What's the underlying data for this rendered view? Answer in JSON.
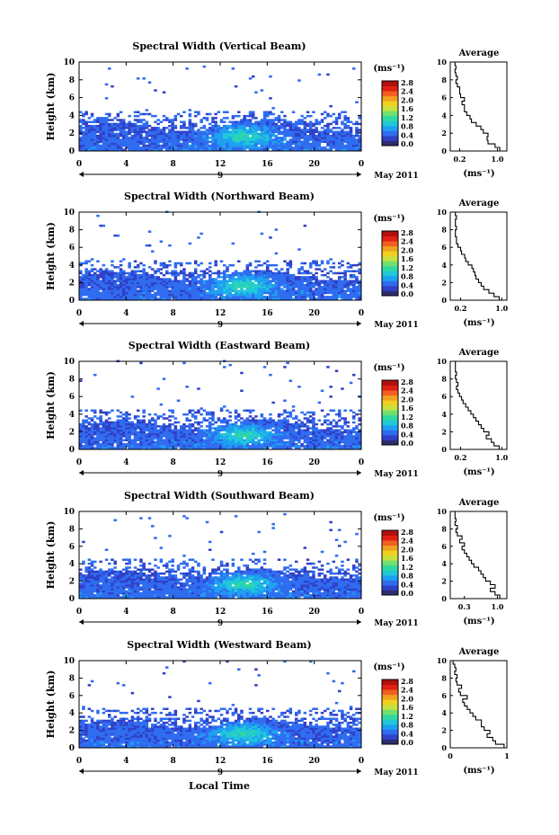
{
  "figure": {
    "bottom_xlabel": "Local Time"
  },
  "colorbar": {
    "unit_label": "(ms⁻¹)",
    "ticks": [
      "2.8",
      "2.4",
      "2.0",
      "1.6",
      "1.2",
      "0.8",
      "0.4",
      "0.0"
    ],
    "colors": [
      "#2d2d6e",
      "#3040c8",
      "#2f6cf0",
      "#1ea0f0",
      "#20c8d8",
      "#30d8a0",
      "#70e070",
      "#c8e040",
      "#f0d020",
      "#f0a020",
      "#f06020",
      "#e02010",
      "#b01010"
    ]
  },
  "chart_data": [
    {
      "type": "heatmap",
      "title": "Spectral Width (Vertical Beam)",
      "ylabel": "Height (km)",
      "ylim": [
        0,
        10
      ],
      "yticks": [
        "0",
        "2",
        "4",
        "6",
        "8",
        "10"
      ],
      "xlim": [
        0,
        24
      ],
      "xticks": [
        "0",
        "4",
        "8",
        "12",
        "16",
        "20",
        "0"
      ],
      "date_day": "9",
      "date_label": "May 2011",
      "profile": {
        "title": "Average",
        "xlabel": "(ms⁻¹)",
        "xlim": [
          0.0,
          1.2
        ],
        "xticks": [
          {
            "v": 0.2,
            "t": "0.2"
          },
          {
            "v": 1.0,
            "t": "1.0"
          }
        ],
        "height": [
          0.2,
          0.6,
          1.0,
          1.4,
          1.8,
          2.2,
          2.6,
          3.0,
          3.4,
          3.8,
          4.2,
          4.6,
          5.0,
          5.4,
          5.8,
          6.2,
          6.6,
          7.0,
          7.4,
          7.8,
          8.2,
          8.6,
          9.0,
          9.4,
          9.8
        ],
        "width": [
          1.05,
          0.95,
          0.8,
          0.78,
          0.8,
          0.7,
          0.65,
          0.55,
          0.45,
          0.42,
          0.35,
          0.3,
          0.3,
          0.25,
          0.3,
          0.22,
          0.2,
          0.2,
          0.15,
          0.12,
          0.15,
          0.12,
          0.1,
          0.12,
          0.1
        ]
      }
    },
    {
      "type": "heatmap",
      "title": "Spectral Width (Northward Beam)",
      "ylabel": "Height (km)",
      "ylim": [
        0,
        10
      ],
      "yticks": [
        "0",
        "2",
        "4",
        "6",
        "8",
        "10"
      ],
      "xlim": [
        0,
        24
      ],
      "xticks": [
        "0",
        "4",
        "8",
        "12",
        "16",
        "20",
        "0"
      ],
      "date_day": "9",
      "date_label": "May 2011",
      "profile": {
        "title": "Average",
        "xlabel": "(ms⁻¹)",
        "xlim": [
          0.0,
          1.1
        ],
        "xticks": [
          {
            "v": 0.2,
            "t": "0.2"
          },
          {
            "v": 1.0,
            "t": "1.0"
          }
        ],
        "height": [
          0.2,
          0.6,
          1.0,
          1.4,
          1.8,
          2.2,
          2.6,
          3.0,
          3.4,
          3.8,
          4.2,
          4.6,
          5.0,
          5.4,
          5.8,
          6.2,
          6.6,
          7.0,
          7.4,
          7.8,
          8.2,
          8.6,
          9.0,
          9.4,
          9.8
        ],
        "width": [
          0.95,
          0.85,
          0.75,
          0.65,
          0.6,
          0.55,
          0.5,
          0.48,
          0.45,
          0.42,
          0.35,
          0.3,
          0.28,
          0.22,
          0.2,
          0.15,
          0.12,
          0.12,
          0.1,
          0.1,
          0.12,
          0.1,
          0.1,
          0.12,
          0.1
        ]
      }
    },
    {
      "type": "heatmap",
      "title": "Spectral Width (Eastward Beam)",
      "ylabel": "Height (km)",
      "ylim": [
        0,
        10
      ],
      "yticks": [
        "0",
        "2",
        "4",
        "6",
        "8",
        "10"
      ],
      "xlim": [
        0,
        24
      ],
      "xticks": [
        "0",
        "4",
        "8",
        "12",
        "16",
        "20",
        "0"
      ],
      "date_day": "9",
      "date_label": "May 2011",
      "profile": {
        "title": "Average",
        "xlabel": "(ms⁻¹)",
        "xlim": [
          0.0,
          1.1
        ],
        "xticks": [
          {
            "v": 0.2,
            "t": "0.2"
          },
          {
            "v": 1.0,
            "t": "1.0"
          }
        ],
        "height": [
          0.2,
          0.6,
          1.0,
          1.4,
          1.8,
          2.2,
          2.6,
          3.0,
          3.4,
          3.8,
          4.2,
          4.6,
          5.0,
          5.4,
          5.8,
          6.2,
          6.6,
          7.0,
          7.4,
          7.8,
          8.2,
          8.6,
          9.0,
          9.4,
          9.8
        ],
        "width": [
          0.95,
          0.85,
          0.8,
          0.7,
          0.75,
          0.65,
          0.6,
          0.55,
          0.5,
          0.45,
          0.4,
          0.35,
          0.3,
          0.25,
          0.22,
          0.18,
          0.15,
          0.12,
          0.15,
          0.12,
          0.1,
          0.12,
          0.1,
          0.1,
          0.1
        ]
      }
    },
    {
      "type": "heatmap",
      "title": "Spectral Width (Southward Beam)",
      "ylabel": "Height (km)",
      "ylim": [
        0,
        10
      ],
      "yticks": [
        "0",
        "2",
        "4",
        "6",
        "8",
        "10"
      ],
      "xlim": [
        0,
        24
      ],
      "xticks": [
        "0",
        "4",
        "8",
        "12",
        "16",
        "20",
        "0"
      ],
      "date_day": "9",
      "date_label": "May 2011",
      "profile": {
        "title": "Average",
        "xlabel": "(ms⁻¹)",
        "xlim": [
          0.0,
          1.2
        ],
        "xticks": [
          {
            "v": 0.3,
            "t": "0.3"
          },
          {
            "v": 1.0,
            "t": "1.0"
          }
        ],
        "height": [
          0.2,
          0.6,
          1.0,
          1.4,
          1.8,
          2.2,
          2.6,
          3.0,
          3.4,
          3.8,
          4.2,
          4.6,
          5.0,
          5.4,
          5.8,
          6.2,
          6.6,
          7.0,
          7.4,
          7.8,
          8.2,
          8.6,
          9.0,
          9.4,
          9.8
        ],
        "width": [
          1.05,
          0.95,
          0.85,
          0.95,
          0.85,
          0.75,
          0.7,
          0.65,
          0.6,
          0.5,
          0.45,
          0.4,
          0.35,
          0.3,
          0.25,
          0.3,
          0.2,
          0.25,
          0.15,
          0.12,
          0.15,
          0.1,
          0.12,
          0.1,
          0.1
        ]
      }
    },
    {
      "type": "heatmap",
      "title": "Spectral Width (Westward Beam)",
      "ylabel": "Height (km)",
      "ylim": [
        0,
        10
      ],
      "yticks": [
        "0",
        "2",
        "4",
        "6",
        "8",
        "10"
      ],
      "xlim": [
        0,
        24
      ],
      "xticks": [
        "0",
        "4",
        "8",
        "12",
        "16",
        "20",
        "0"
      ],
      "date_day": "9",
      "date_label": "May 2011",
      "profile": {
        "title": "Average",
        "xlabel": "(ms⁻¹)",
        "xlim": [
          0.0,
          1.0
        ],
        "xticks": [
          {
            "v": 0.0,
            "t": "0"
          },
          {
            "v": 1.0,
            "t": "1"
          }
        ],
        "height": [
          0.2,
          0.6,
          1.0,
          1.4,
          1.8,
          2.2,
          2.6,
          3.0,
          3.4,
          3.8,
          4.2,
          4.6,
          5.0,
          5.4,
          5.8,
          6.2,
          6.6,
          7.0,
          7.4,
          7.8,
          8.2,
          8.6,
          9.0,
          9.4,
          9.8
        ],
        "width": [
          0.95,
          0.8,
          0.75,
          0.65,
          0.7,
          0.6,
          0.55,
          0.55,
          0.45,
          0.4,
          0.35,
          0.3,
          0.25,
          0.22,
          0.3,
          0.18,
          0.15,
          0.2,
          0.12,
          0.1,
          0.12,
          0.08,
          0.1,
          0.08,
          0.05
        ]
      }
    }
  ]
}
